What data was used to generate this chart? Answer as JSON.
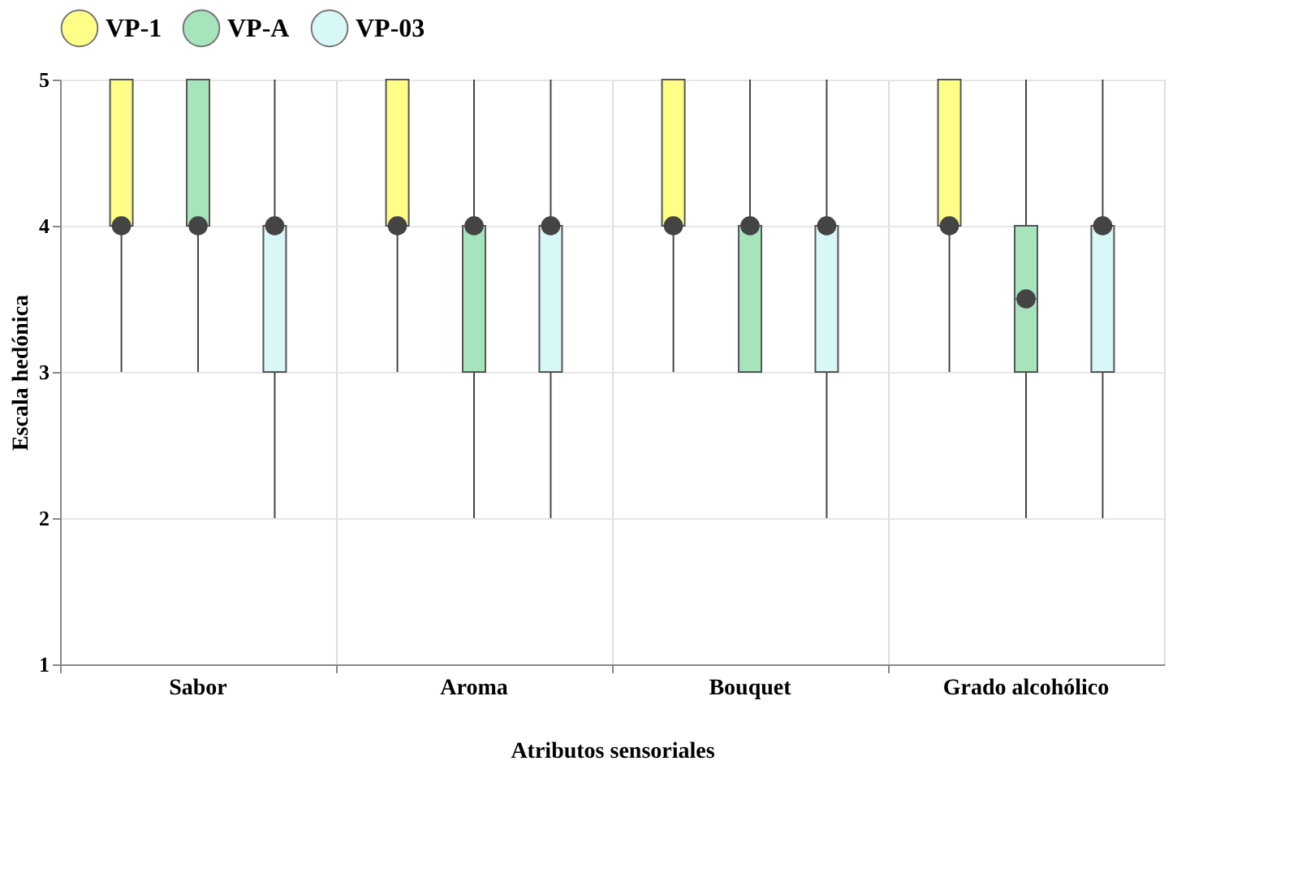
{
  "chart_data": {
    "type": "box",
    "xlabel": "Atributos sensoriales",
    "ylabel": "Escala hedónica",
    "categories": [
      "Sabor",
      "Aroma",
      "Bouquet",
      "Grado alcohólico"
    ],
    "ylim": [
      1,
      5
    ],
    "yticks": [
      1,
      2,
      3,
      4,
      5
    ],
    "grid": true,
    "legend": "top",
    "series": [
      {
        "name": "VP-1",
        "color": "#ffff88",
        "boxes": [
          {
            "low": 3,
            "q1": 4,
            "median": 4,
            "q3": 5,
            "high": 5,
            "mean": 4
          },
          {
            "low": 3,
            "q1": 4,
            "median": 4,
            "q3": 5,
            "high": 5,
            "mean": 4
          },
          {
            "low": 3,
            "q1": 4,
            "median": 4,
            "q3": 5,
            "high": 5,
            "mean": 4
          },
          {
            "low": 3,
            "q1": 4,
            "median": 4,
            "q3": 5,
            "high": 5,
            "mean": 4
          }
        ]
      },
      {
        "name": "VP-A",
        "color": "#a6e4bc",
        "boxes": [
          {
            "low": 3,
            "q1": 4,
            "median": 4,
            "q3": 5,
            "high": 5,
            "mean": 4
          },
          {
            "low": 2,
            "q1": 3,
            "median": 4,
            "q3": 4,
            "high": 5,
            "mean": 4
          },
          {
            "low": 3,
            "q1": 3,
            "median": 4,
            "q3": 4,
            "high": 5,
            "mean": 4
          },
          {
            "low": 2,
            "q1": 3,
            "median": 3.5,
            "q3": 4,
            "high": 5,
            "mean": 3.5
          }
        ]
      },
      {
        "name": "VP-03",
        "color": "#d8f7f7",
        "boxes": [
          {
            "low": 2,
            "q1": 3,
            "median": 4,
            "q3": 4,
            "high": 5,
            "mean": 4
          },
          {
            "low": 2,
            "q1": 3,
            "median": 4,
            "q3": 4,
            "high": 5,
            "mean": 4
          },
          {
            "low": 2,
            "q1": 3,
            "median": 4,
            "q3": 4,
            "high": 5,
            "mean": 4
          },
          {
            "low": 2,
            "q1": 3,
            "median": 4,
            "q3": 4,
            "high": 5,
            "mean": 4
          }
        ]
      }
    ]
  }
}
